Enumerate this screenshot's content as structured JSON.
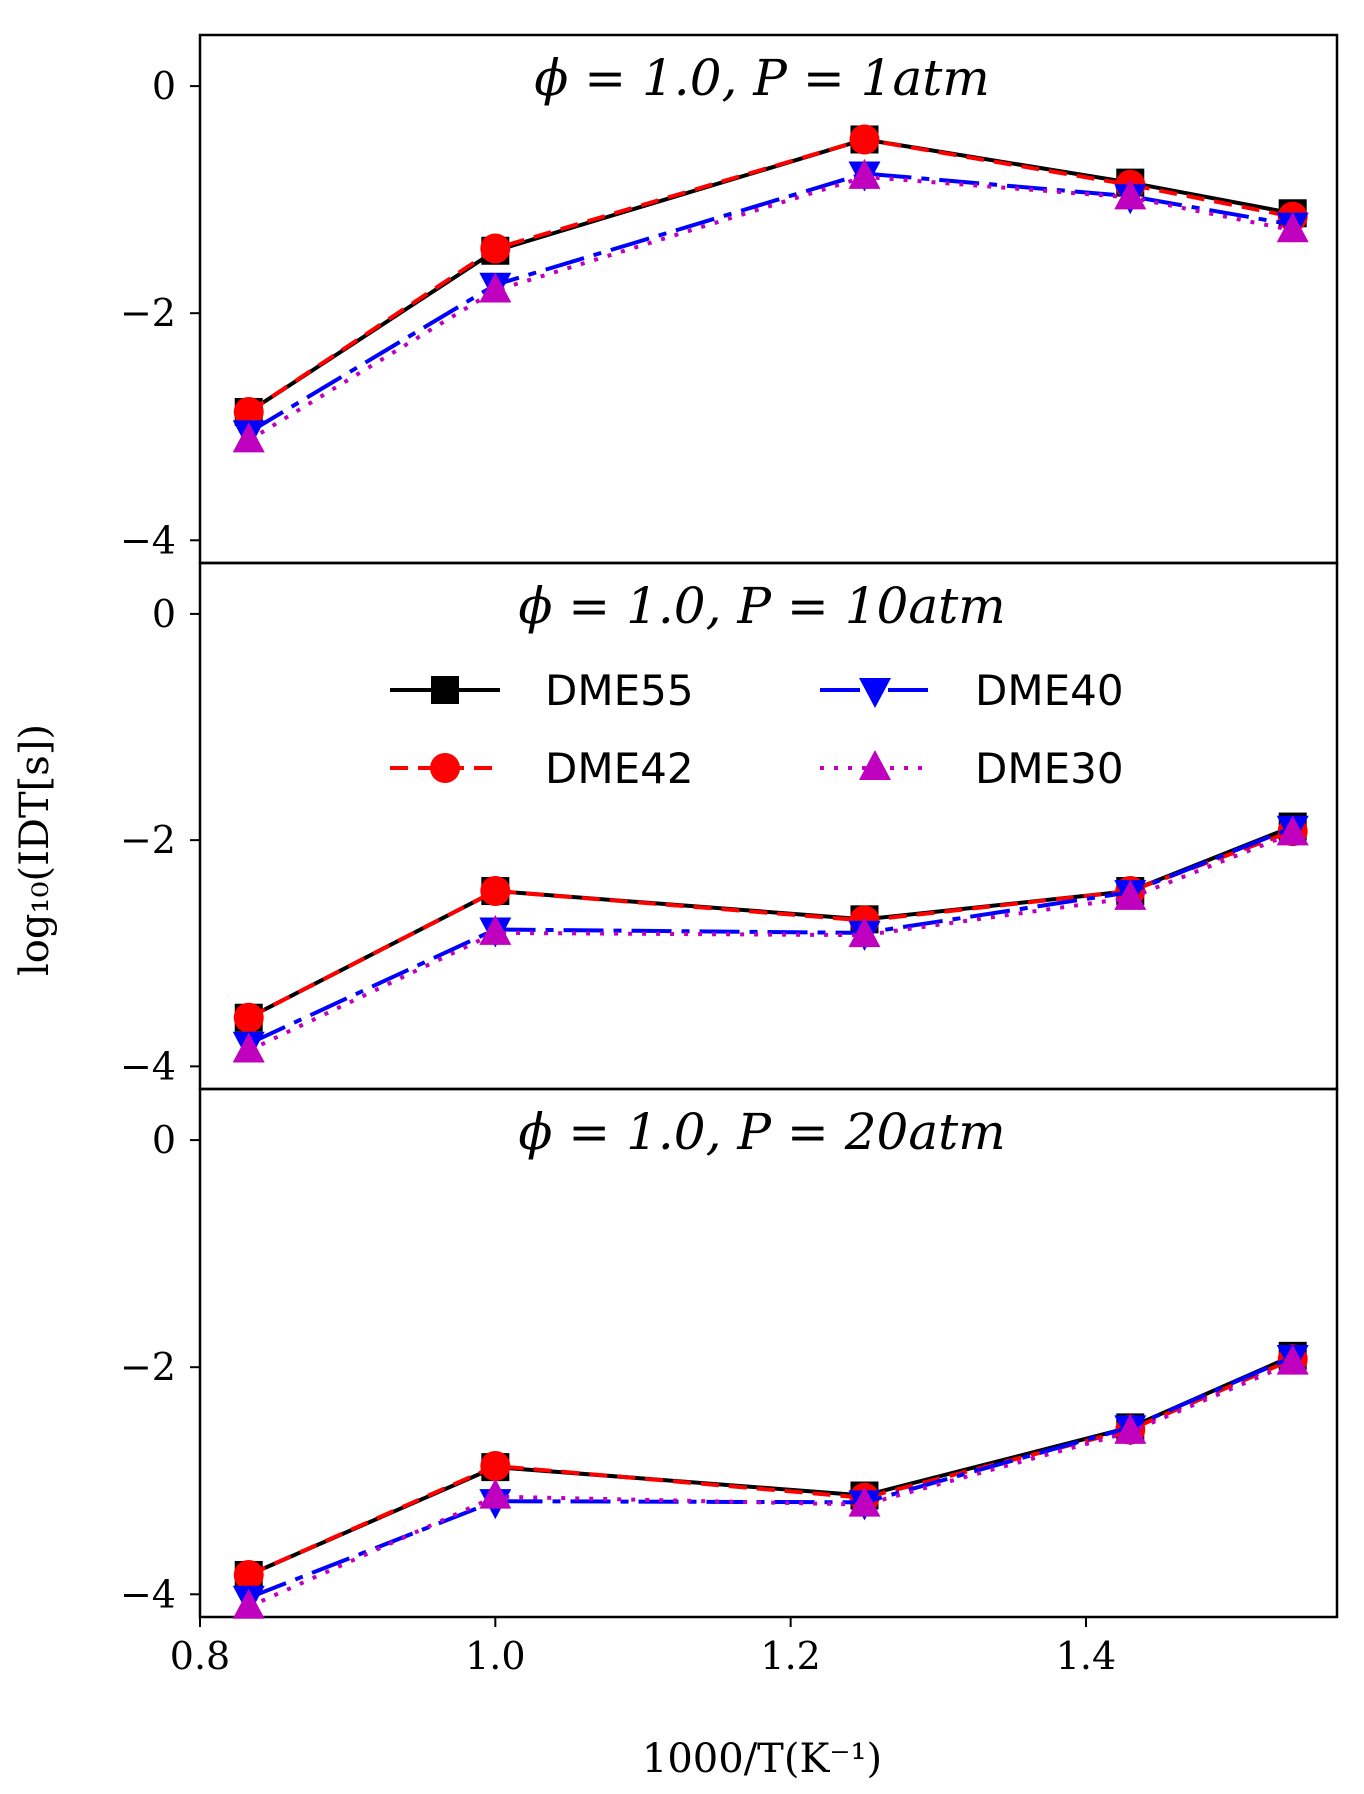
{
  "chart_data": {
    "type": "line",
    "xlabel": "1000/T(K⁻¹)",
    "ylabel": "log₁₀(IDT[s])",
    "xlim": [
      0.8,
      1.57
    ],
    "ylim": [
      -4.2,
      0.45
    ],
    "x_ticks": [
      0.8,
      1.0,
      1.2,
      1.4
    ],
    "x_tick_labels": [
      "0.8",
      "1.0",
      "1.2",
      "1.4"
    ],
    "y_ticks": [
      0,
      -2,
      -4
    ],
    "y_tick_labels": [
      "0",
      "−2",
      "−4"
    ],
    "x": [
      0.833,
      1.0,
      1.25,
      1.43,
      1.54
    ],
    "grid": false,
    "legend": {
      "placement": "upper-center of middle panel",
      "columns": 2
    },
    "series_styles": [
      {
        "name": "DME55",
        "color": "#000000",
        "dash": "none",
        "marker": "square"
      },
      {
        "name": "DME42",
        "color": "#ff0000",
        "dash": "18 10",
        "marker": "circle"
      },
      {
        "name": "DME40",
        "color": "#0000ff",
        "dash": "40 10 8 10",
        "marker": "triangle-down"
      },
      {
        "name": "DME30",
        "color": "#bf00bf",
        "dash": "4 10",
        "marker": "triangle-up"
      }
    ],
    "panels": [
      {
        "title": "ϕ = 1.0, P = 1atm",
        "series": [
          {
            "name": "DME55",
            "values": [
              -2.87,
              -1.45,
              -0.47,
              -0.85,
              -1.12
            ]
          },
          {
            "name": "DME42",
            "values": [
              -2.87,
              -1.43,
              -0.47,
              -0.87,
              -1.15
            ]
          },
          {
            "name": "DME40",
            "values": [
              -3.05,
              -1.75,
              -0.77,
              -0.97,
              -1.22
            ]
          },
          {
            "name": "DME30",
            "values": [
              -3.12,
              -1.8,
              -0.8,
              -0.98,
              -1.27
            ]
          }
        ]
      },
      {
        "title": "ϕ = 1.0, P = 10atm",
        "series": [
          {
            "name": "DME55",
            "values": [
              -3.57,
              -2.45,
              -2.7,
              -2.45,
              -1.88
            ]
          },
          {
            "name": "DME42",
            "values": [
              -3.57,
              -2.45,
              -2.71,
              -2.45,
              -1.92
            ]
          },
          {
            "name": "DME40",
            "values": [
              -3.8,
              -2.79,
              -2.82,
              -2.46,
              -1.89
            ]
          },
          {
            "name": "DME30",
            "values": [
              -3.86,
              -2.82,
              -2.84,
              -2.51,
              -1.94
            ]
          }
        ]
      },
      {
        "title": "ϕ = 1.0, P = 20atm",
        "series": [
          {
            "name": "DME55",
            "values": [
              -3.83,
              -2.88,
              -3.13,
              -2.53,
              -1.9
            ]
          },
          {
            "name": "DME42",
            "values": [
              -3.83,
              -2.87,
              -3.15,
              -2.55,
              -1.93
            ]
          },
          {
            "name": "DME40",
            "values": [
              -4.03,
              -3.18,
              -3.19,
              -2.53,
              -1.91
            ]
          },
          {
            "name": "DME30",
            "values": [
              -4.11,
              -3.14,
              -3.21,
              -2.57,
              -1.96
            ]
          }
        ]
      }
    ]
  }
}
